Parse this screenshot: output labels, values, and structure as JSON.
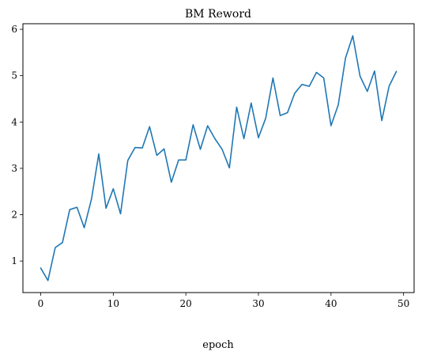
{
  "chart_data": {
    "type": "line",
    "title": "BM Reword",
    "xlabel": "epoch",
    "ylabel": "",
    "xlim": [
      -2.45,
      51.45
    ],
    "ylim": [
      0.32,
      6.12
    ],
    "xticks": [
      0,
      10,
      20,
      30,
      40,
      50
    ],
    "yticks": [
      1,
      2,
      3,
      4,
      5,
      6
    ],
    "grid": false,
    "legend": "none",
    "series": [
      {
        "color": "#1f77b4",
        "x": [
          0,
          1,
          2,
          3,
          4,
          5,
          6,
          7,
          8,
          9,
          10,
          11,
          12,
          13,
          14,
          15,
          16,
          17,
          18,
          19,
          20,
          21,
          22,
          23,
          24,
          25,
          26,
          27,
          28,
          29,
          30,
          31,
          32,
          33,
          34,
          35,
          36,
          37,
          38,
          39,
          40,
          41,
          42,
          43,
          44,
          45,
          46,
          47,
          48,
          49
        ],
        "y": [
          0.85,
          0.58,
          1.29,
          1.4,
          2.11,
          2.16,
          1.72,
          2.34,
          3.31,
          2.14,
          2.56,
          2.02,
          3.17,
          3.45,
          3.44,
          3.9,
          3.28,
          3.42,
          2.7,
          3.18,
          3.18,
          3.94,
          3.41,
          3.92,
          3.64,
          3.41,
          3.01,
          4.32,
          3.64,
          4.41,
          3.66,
          4.08,
          4.95,
          4.14,
          4.2,
          4.62,
          4.81,
          4.77,
          5.07,
          4.95,
          3.92,
          4.37,
          5.38,
          5.86,
          4.99,
          4.66,
          5.1,
          4.03,
          4.77,
          5.09
        ]
      }
    ]
  }
}
